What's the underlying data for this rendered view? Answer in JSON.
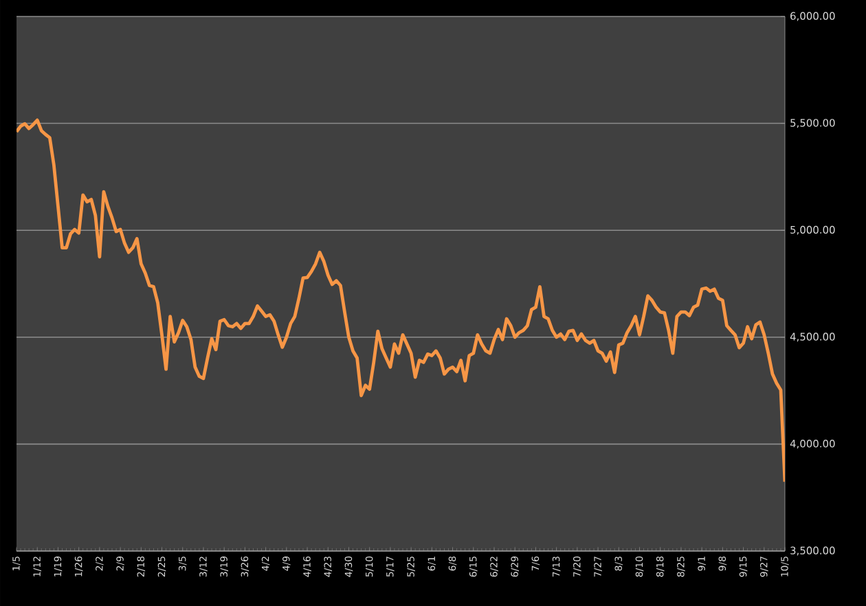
{
  "chart_data": {
    "type": "line",
    "categories": [
      "1/5",
      null,
      null,
      null,
      null,
      "1/12",
      null,
      null,
      null,
      null,
      "1/19",
      null,
      null,
      null,
      null,
      "1/26",
      null,
      null,
      null,
      null,
      "2/2",
      null,
      null,
      null,
      null,
      "2/9",
      null,
      null,
      null,
      null,
      "2/18",
      null,
      null,
      null,
      null,
      "2/25",
      null,
      null,
      null,
      null,
      "3/5",
      null,
      null,
      null,
      null,
      "3/12",
      null,
      null,
      null,
      null,
      "3/19",
      null,
      null,
      null,
      null,
      "3/26",
      null,
      null,
      null,
      null,
      "4/2",
      null,
      null,
      null,
      null,
      "4/9",
      null,
      null,
      null,
      null,
      "4/16",
      null,
      null,
      null,
      null,
      "4/23",
      null,
      null,
      null,
      null,
      "4/30",
      null,
      null,
      null,
      null,
      "5/10",
      null,
      null,
      null,
      null,
      "5/17",
      null,
      null,
      null,
      null,
      "5/25",
      null,
      null,
      null,
      null,
      "6/1",
      null,
      null,
      null,
      null,
      "6/8",
      null,
      null,
      null,
      null,
      "6/15",
      null,
      null,
      null,
      null,
      "6/22",
      null,
      null,
      null,
      null,
      "6/29",
      null,
      null,
      null,
      null,
      "7/6",
      null,
      null,
      null,
      null,
      "7/13",
      null,
      null,
      null,
      null,
      "7/20",
      null,
      null,
      null,
      null,
      "7/27",
      null,
      null,
      null,
      null,
      "8/3",
      null,
      null,
      null,
      null,
      "8/10",
      null,
      null,
      null,
      null,
      "8/18",
      null,
      null,
      null,
      null,
      "8/25",
      null,
      null,
      null,
      null,
      "9/1",
      null,
      null,
      null,
      null,
      "9/8",
      null,
      null,
      null,
      null,
      "9/15",
      null,
      null,
      null,
      null,
      "9/27",
      null,
      null,
      null,
      null,
      "10/5"
    ],
    "values": [
      5461,
      5487,
      5498,
      5476,
      5494,
      5515,
      5466,
      5448,
      5433,
      5305,
      5112,
      4918,
      4918,
      4983,
      5004,
      4987,
      5165,
      5133,
      5144,
      5069,
      4876,
      5180,
      5112,
      5058,
      4994,
      5004,
      4940,
      4897,
      4918,
      4961,
      4843,
      4800,
      4742,
      4736,
      4661,
      4511,
      4350,
      4597,
      4478,
      4521,
      4579,
      4549,
      4489,
      4360,
      4317,
      4307,
      4403,
      4493,
      4442,
      4575,
      4582,
      4554,
      4549,
      4564,
      4541,
      4564,
      4564,
      4597,
      4646,
      4622,
      4597,
      4605,
      4575,
      4511,
      4453,
      4500,
      4564,
      4597,
      4682,
      4777,
      4779,
      4807,
      4843,
      4897,
      4854,
      4790,
      4747,
      4764,
      4742,
      4618,
      4500,
      4436,
      4403,
      4227,
      4275,
      4257,
      4382,
      4528,
      4446,
      4403,
      4360,
      4468,
      4425,
      4511,
      4468,
      4425,
      4313,
      4392,
      4382,
      4421,
      4414,
      4436,
      4403,
      4328,
      4350,
      4360,
      4339,
      4392,
      4296,
      4414,
      4425,
      4511,
      4468,
      4436,
      4425,
      4489,
      4536,
      4489,
      4586,
      4554,
      4500,
      4521,
      4532,
      4554,
      4629,
      4640,
      4736,
      4597,
      4586,
      4532,
      4500,
      4515,
      4489,
      4528,
      4532,
      4485,
      4515,
      4485,
      4472,
      4485,
      4436,
      4425,
      4388,
      4431,
      4335,
      4464,
      4472,
      4521,
      4554,
      4597,
      4511,
      4597,
      4693,
      4672,
      4640,
      4618,
      4614,
      4532,
      4425,
      4597,
      4618,
      4618,
      4601,
      4640,
      4650,
      4725,
      4730,
      4715,
      4725,
      4682,
      4672,
      4554,
      4532,
      4511,
      4451,
      4472,
      4549,
      4493,
      4558,
      4571,
      4511,
      4425,
      4328,
      4285,
      4253,
      3824
    ],
    "color": "#f79646",
    "ylim": [
      3500,
      6000
    ],
    "yticks": [
      {
        "value": 3500,
        "label": "3,500.00"
      },
      {
        "value": 4000,
        "label": "4,000.00"
      },
      {
        "value": 4500,
        "label": "4,500.00"
      },
      {
        "value": 5000,
        "label": "5,000.00"
      },
      {
        "value": 5500,
        "label": "5,500.00"
      },
      {
        "value": 6000,
        "label": "6,000.00"
      }
    ],
    "grid": "y"
  }
}
